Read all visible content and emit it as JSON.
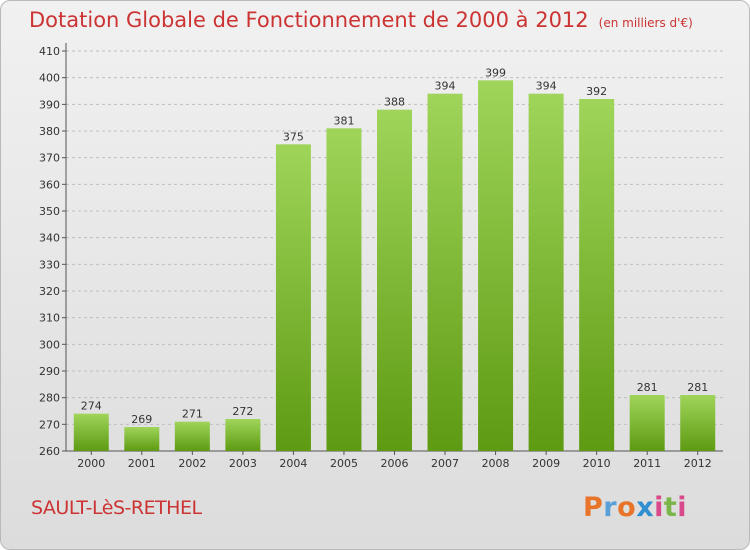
{
  "header": {
    "title": "Dotation Globale de Fonctionnement de 2000 à 2012",
    "unit": "(en milliers d'€)"
  },
  "commune": "SAULT-LèS-RETHEL",
  "brand": {
    "logo_text": "Proxiti",
    "logo_colors": [
      "#e8742a",
      "#5aa0d8",
      "#e8742a",
      "#2f8fd0",
      "#d94a8c",
      "#7ab648",
      "#d94a8c"
    ]
  },
  "colors": {
    "bar_top": "#9fd55a",
    "bar_bottom": "#5e9a12",
    "title": "#cc3333",
    "grid": "#bfbfbf"
  },
  "chart_data": {
    "type": "bar",
    "title": "Dotation Globale de Fonctionnement de 2000 à 2012",
    "subtitle": "(en milliers d'€)",
    "categories": [
      "2000",
      "2001",
      "2002",
      "2003",
      "2004",
      "2005",
      "2006",
      "2007",
      "2008",
      "2009",
      "2010",
      "2011",
      "2012"
    ],
    "values": [
      274,
      269,
      271,
      272,
      375,
      381,
      388,
      394,
      399,
      394,
      392,
      281,
      281
    ],
    "ylim": [
      260,
      410
    ],
    "ytick_step": 10,
    "grid": true,
    "xlabel": "",
    "ylabel": ""
  }
}
